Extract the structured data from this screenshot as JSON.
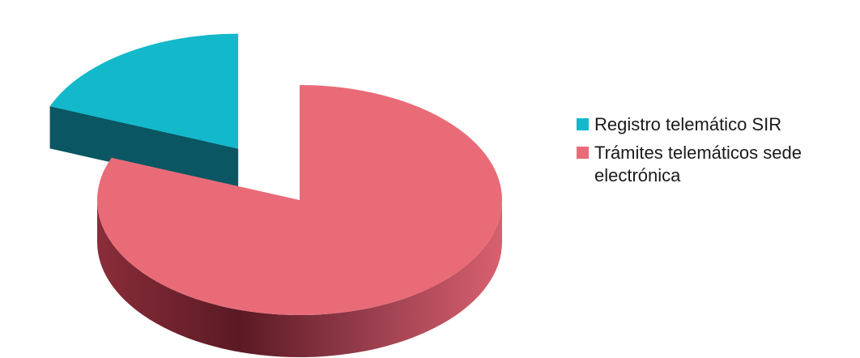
{
  "chart_data": {
    "type": "pie",
    "style": "3d-exploded",
    "title": "",
    "categories": [
      "Registro telemático SIR",
      "Trámites telemáticos sede electrónica"
    ],
    "values": [
      19,
      81
    ],
    "colors": [
      "#13b8cb",
      "#ea6b78"
    ],
    "exploded": [
      true,
      false
    ],
    "legend": {
      "position": "right",
      "items": [
        {
          "label": "Registro telemático SIR",
          "color": "#13b8cb"
        },
        {
          "label": "Trámites telemáticos sede electrónica",
          "color": "#ea6b78"
        }
      ]
    }
  }
}
